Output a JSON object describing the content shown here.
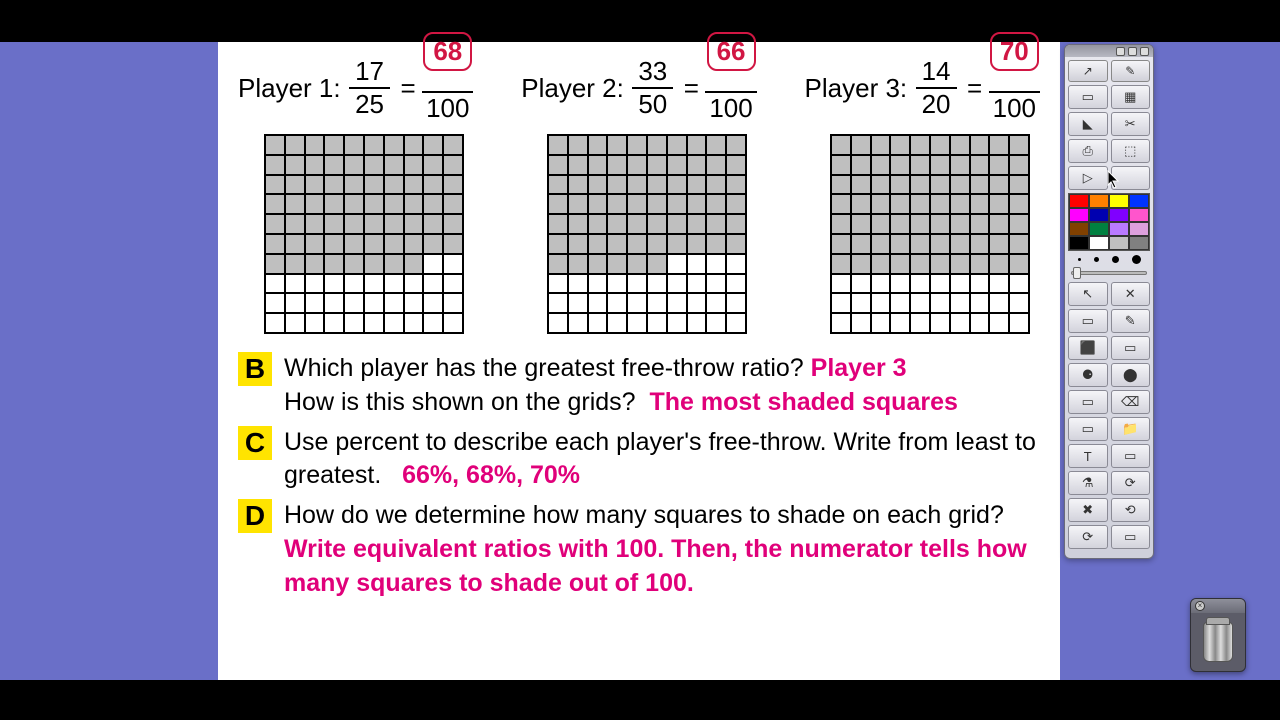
{
  "players": [
    {
      "label": "Player 1:",
      "num": "17",
      "den": "25",
      "ans": "68",
      "ans_den": "100",
      "shaded": 68
    },
    {
      "label": "Player 2:",
      "num": "33",
      "den": "50",
      "ans": "66",
      "ans_den": "100",
      "shaded": 66
    },
    {
      "label": "Player 3:",
      "num": "14",
      "den": "20",
      "ans": "70",
      "ans_den": "100",
      "shaded": 70
    }
  ],
  "questions": {
    "B": {
      "label": "B",
      "line1": "Which player has the greatest free-throw ratio?",
      "ans1": "Player 3",
      "line2": "How is this shown on the grids?",
      "ans2": "The most shaded squares"
    },
    "C": {
      "label": "C",
      "text": "Use percent to describe each player's free-throw. Write from least to greatest.",
      "ans": "66%,  68%,  70%"
    },
    "D": {
      "label": "D",
      "text": "How do we determine how many squares to shade on each grid?",
      "ans": "Write equivalent ratios with 100. Then, the numerator tells how many squares to shade out of 100."
    }
  },
  "palette_colors": [
    "#ff0000",
    "#ff8000",
    "#ffff00",
    "#0033ff",
    "#ff00ff",
    "#0000b0",
    "#8000ff",
    "#ff55cc",
    "#804000",
    "#008040",
    "#b97aff",
    "#dda0dd",
    "#000000",
    "#ffffff",
    "#c0c0c0",
    "#808080"
  ],
  "colors": {
    "desktop": "#6a6fc8",
    "answer": "#e0007a",
    "highlight": "#ffe400",
    "box_border": "#d11643",
    "shaded_cell": "#bfbfbf"
  },
  "tool_icons_row1": [
    "↗",
    "✎"
  ],
  "tool_icons": [
    "▭",
    "▦",
    "◣",
    "✂",
    "⎙",
    "⬚",
    "▷",
    "",
    "↖",
    "✕",
    "▭",
    "✎",
    "⬛",
    "▭",
    "⚈",
    "⬤",
    "▭",
    "⌫",
    "▭",
    "📁",
    "T",
    "▭",
    "⚗",
    "⟳",
    "✖",
    "⟲",
    "⟳",
    "▭"
  ],
  "thickness_dots": [
    3,
    5,
    7,
    9
  ]
}
